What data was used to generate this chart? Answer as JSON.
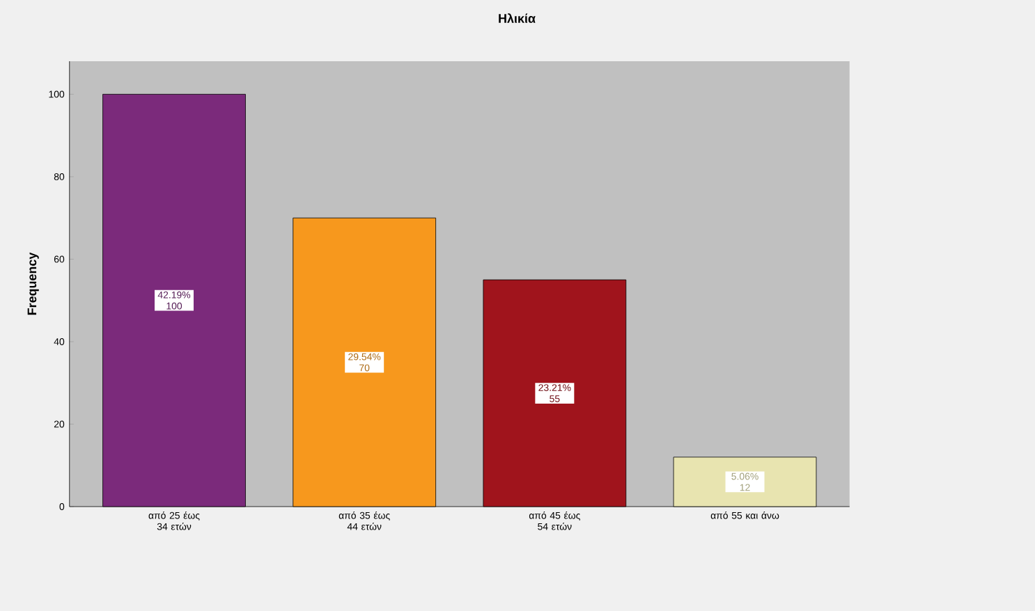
{
  "chart_data": {
    "type": "bar",
    "title": "Ηλικία",
    "ylabel": "Frequency",
    "categories": [
      "από 25 έως 34 ετών",
      "από 35 έως 44 ετών",
      "από 45 έως 54 ετών",
      "από 55 και άνω"
    ],
    "values": [
      100,
      70,
      55,
      12
    ],
    "colors": [
      "#7b2a7b",
      "#f7981d",
      "#a0141c",
      "#e8e4b0"
    ],
    "value_labels": [
      "42.19% 100",
      "29.54% 70",
      "23.21% 55",
      "5.06% 12"
    ],
    "ylim": [
      0,
      108
    ],
    "yticks": [
      0,
      20,
      40,
      60,
      80,
      100
    ],
    "grid": false
  }
}
